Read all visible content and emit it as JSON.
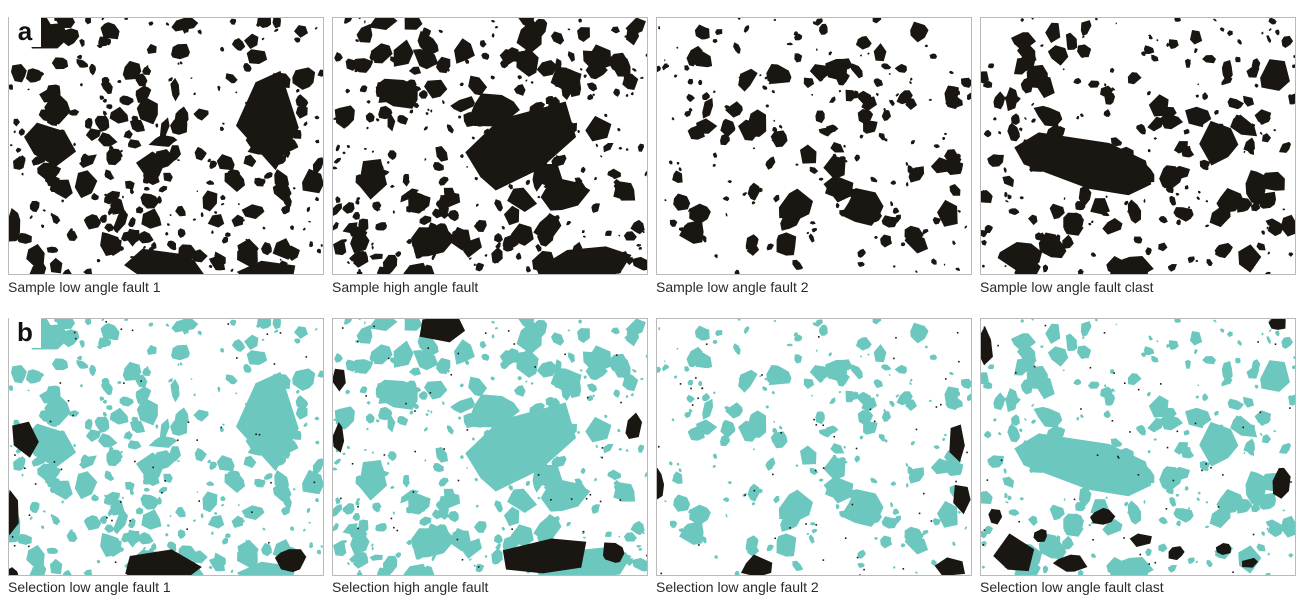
{
  "rows": [
    {
      "letter": "a",
      "panels": [
        {
          "caption": "Sample low angle fault 1"
        },
        {
          "caption": "Sample high angle fault"
        },
        {
          "caption": "Sample low angle fault 2"
        },
        {
          "caption": "Sample low angle fault clast"
        }
      ]
    },
    {
      "letter": "b",
      "panels": [
        {
          "caption": "Selection low angle fault 1"
        },
        {
          "caption": "Selection high angle fault"
        },
        {
          "caption": "Selection low angle fault 2"
        },
        {
          "caption": "Selection low angle fault clast"
        }
      ]
    }
  ],
  "colors": {
    "clast_black": "#1a1612",
    "clast_selected": "#6cc7bf",
    "background": "#ffffff",
    "panel_border": "#b9b9b9"
  }
}
